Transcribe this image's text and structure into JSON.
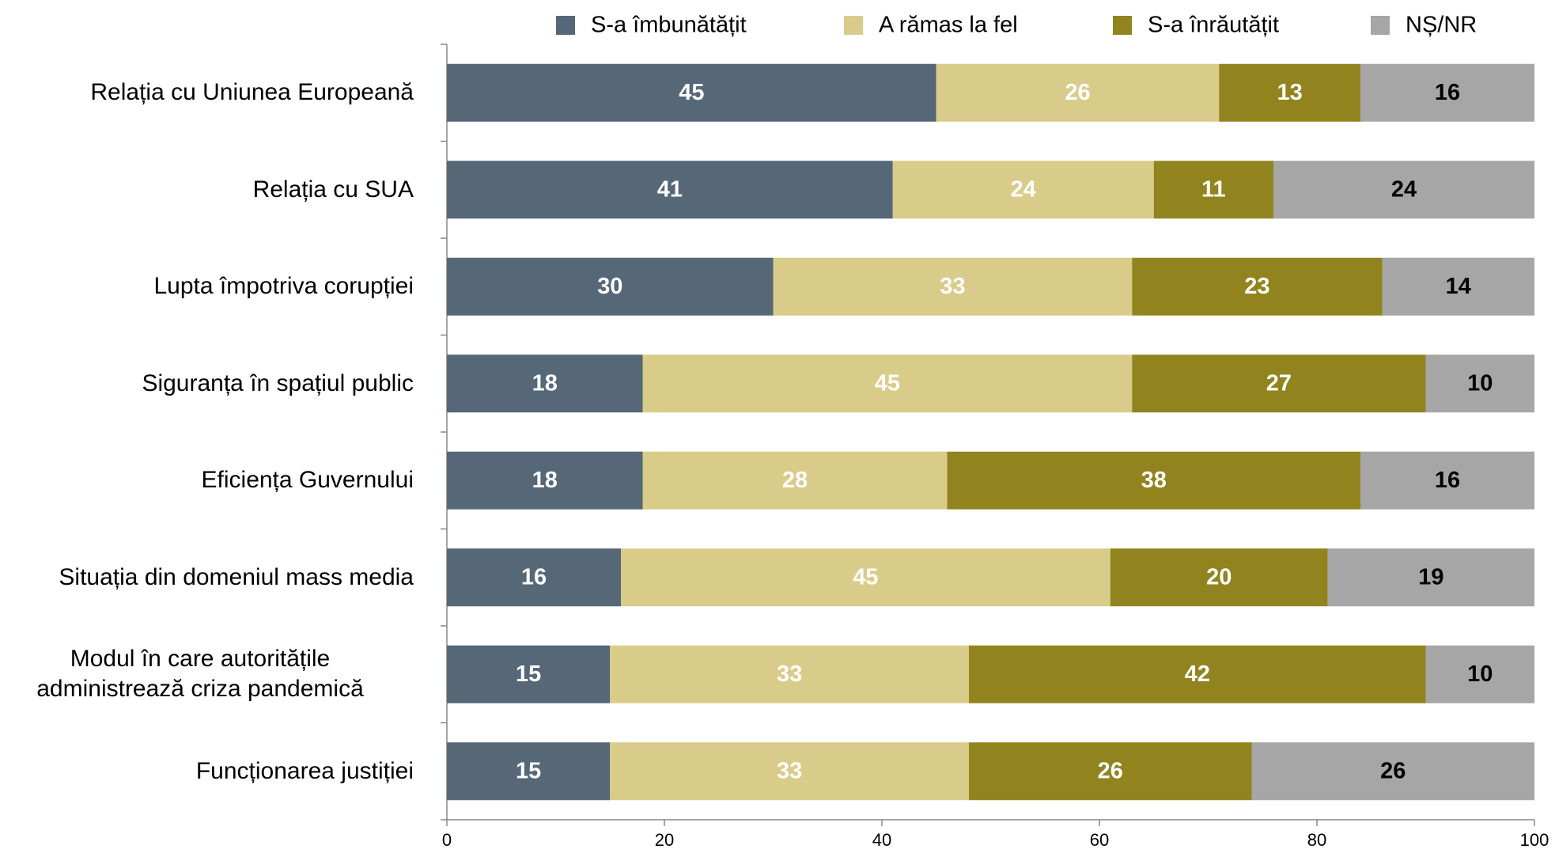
{
  "chart_data": {
    "type": "stacked_barh",
    "categories": [
      "Relația cu Uniunea Europeană",
      "Relația cu SUA",
      "Lupta împotriva corupției",
      "Siguranța în spațiul public",
      "Eficiența Guvernului",
      "Situația din domeniul mass media",
      "Modul în care autoritățile\nadministrează criza pandemică",
      "Funcționarea justiției"
    ],
    "series": [
      {
        "name": "S-a îmbunătățit",
        "color": "#566777",
        "values": [
          45,
          41,
          30,
          18,
          18,
          16,
          15,
          15
        ]
      },
      {
        "name": "A rămas la fel",
        "color": "#d9cc8a",
        "values": [
          26,
          24,
          33,
          45,
          28,
          45,
          33,
          33
        ]
      },
      {
        "name": "S-a înrăutățit",
        "color": "#91841e",
        "values": [
          13,
          11,
          23,
          27,
          38,
          20,
          42,
          26
        ]
      },
      {
        "name": "NȘ/NR",
        "color": "#a6a6a6",
        "values": [
          16,
          24,
          14,
          10,
          16,
          19,
          10,
          26
        ]
      }
    ],
    "xlim": [
      0,
      100
    ],
    "xticks": [
      0,
      20,
      40,
      60,
      80,
      100
    ],
    "legend": "top"
  }
}
